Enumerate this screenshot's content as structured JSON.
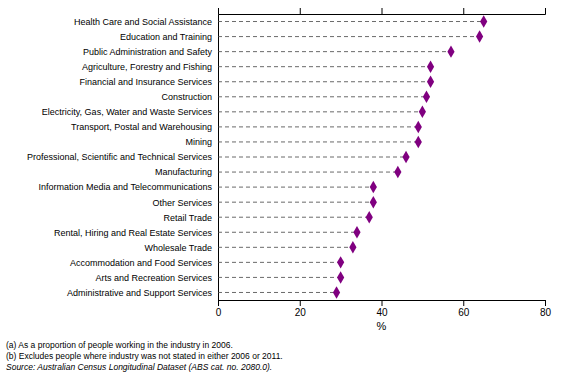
{
  "chart_data": {
    "type": "dot",
    "orientation": "horizontal",
    "categories": [
      "Health Care and Social Assistance",
      "Education and Training",
      "Public Administration and Safety",
      "Agriculture, Forestry and Fishing",
      "Financial and Insurance Services",
      "Construction",
      "Electricity, Gas, Water and Waste Services",
      "Transport, Postal and Warehousing",
      "Mining",
      "Professional, Scientific and Technical Services",
      "Manufacturing",
      "Information Media and Telecommunications",
      "Other Services",
      "Retail Trade",
      "Rental, Hiring and Real Estate Services",
      "Wholesale Trade",
      "Accommodation and Food Services",
      "Arts and Recreation Services",
      "Administrative and Support Services"
    ],
    "values": [
      65,
      64,
      57,
      52,
      52,
      51,
      50,
      49,
      49,
      46,
      44,
      38,
      38,
      37,
      34,
      33,
      30,
      30,
      29
    ],
    "color": "#800080",
    "marker": "diamond",
    "line_style": "dashed",
    "x_label": "%",
    "xlim": [
      0,
      80
    ],
    "xticks": [
      0,
      20,
      40,
      60,
      80
    ],
    "grid": false,
    "annotations": [
      "(a)  As a proportion of people working in the industry in 2006.",
      "(b)  Excludes people where industry was not stated in either 2006 or 2011.",
      "Source: Australian Census Longitudinal Dataset (ABS cat. no. 2080.0)."
    ]
  }
}
